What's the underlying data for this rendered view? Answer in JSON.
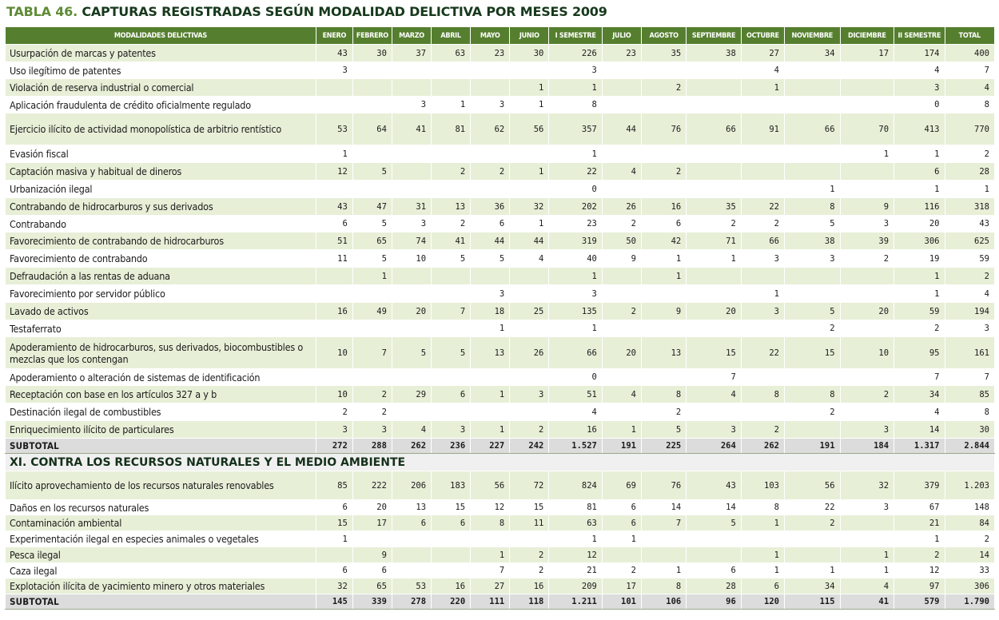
{
  "title": {
    "number": "TABLA 46.",
    "text": "CAPTURAS REGISTRADAS SEGÚN MODALIDAD DELICTIVA POR MESES 2009"
  },
  "columns": [
    "MODALIDADES DELICTIVAS",
    "ENERO",
    "FEBRERO",
    "MARZO",
    "ABRIL",
    "MAYO",
    "JUNIO",
    "I SEMESTRE",
    "JULIO",
    "AGOSTO",
    "SEPTIEMBRE",
    "OCTUBRE",
    "NOVIEMBRE",
    "DICIEMBRE",
    "II SEMESTRE",
    "TOTAL"
  ],
  "rows": [
    {
      "label": "Usurpación de marcas y patentes",
      "values": [
        "43",
        "30",
        "37",
        "63",
        "23",
        "30",
        "226",
        "23",
        "35",
        "38",
        "27",
        "34",
        "17",
        "174",
        "400"
      ]
    },
    {
      "label": "Uso ilegítimo de patentes",
      "values": [
        "3",
        "",
        "",
        "",
        "",
        "",
        "3",
        "",
        "",
        "",
        "4",
        "",
        "",
        "4",
        "7"
      ]
    },
    {
      "label": "Violación de reserva industrial o comercial",
      "values": [
        "",
        "",
        "",
        "",
        "",
        "1",
        "1",
        "",
        "2",
        "",
        "1",
        "",
        "",
        "3",
        "4"
      ]
    },
    {
      "label": "Aplicación fraudulenta de crédito oficialmente regulado",
      "values": [
        "",
        "",
        "3",
        "1",
        "3",
        "1",
        "8",
        "",
        "",
        "",
        "",
        "",
        "",
        "0",
        "8"
      ]
    },
    {
      "label": "Ejercicio ilícito de actividad monopolística de arbitrio rentístico",
      "values": [
        "53",
        "64",
        "41",
        "81",
        "62",
        "56",
        "357",
        "44",
        "76",
        "66",
        "91",
        "66",
        "70",
        "413",
        "770"
      ]
    },
    {
      "label": "Evasión fiscal",
      "values": [
        "1",
        "",
        "",
        "",
        "",
        "",
        "1",
        "",
        "",
        "",
        "",
        "",
        "1",
        "1",
        "2"
      ]
    },
    {
      "label": "Captación masiva y habitual de dineros",
      "values": [
        "12",
        "5",
        "",
        "2",
        "2",
        "1",
        "22",
        "4",
        "2",
        "",
        "",
        "",
        "",
        "6",
        "28"
      ]
    },
    {
      "label": "Urbanización ilegal",
      "values": [
        "",
        "",
        "",
        "",
        "",
        "",
        "0",
        "",
        "",
        "",
        "",
        "1",
        "",
        "1",
        "1"
      ]
    },
    {
      "label": "Contrabando de hidrocarburos y sus derivados",
      "values": [
        "43",
        "47",
        "31",
        "13",
        "36",
        "32",
        "202",
        "26",
        "16",
        "35",
        "22",
        "8",
        "9",
        "116",
        "318"
      ]
    },
    {
      "label": "Contrabando",
      "values": [
        "6",
        "5",
        "3",
        "2",
        "6",
        "1",
        "23",
        "2",
        "6",
        "2",
        "2",
        "5",
        "3",
        "20",
        "43"
      ]
    },
    {
      "label": "Favorecimiento de contrabando de hidrocarburos",
      "values": [
        "51",
        "65",
        "74",
        "41",
        "44",
        "44",
        "319",
        "50",
        "42",
        "71",
        "66",
        "38",
        "39",
        "306",
        "625"
      ]
    },
    {
      "label": "Favorecimiento de contrabando",
      "values": [
        "11",
        "5",
        "10",
        "5",
        "5",
        "4",
        "40",
        "9",
        "1",
        "1",
        "3",
        "3",
        "2",
        "19",
        "59"
      ]
    },
    {
      "label": "Defraudación a las rentas de aduana",
      "values": [
        "",
        "1",
        "",
        "",
        "",
        "",
        "1",
        "",
        "1",
        "",
        "",
        "",
        "",
        "1",
        "2"
      ]
    },
    {
      "label": "Favorecimiento por servidor público",
      "values": [
        "",
        "",
        "",
        "",
        "3",
        "",
        "3",
        "",
        "",
        "",
        "1",
        "",
        "",
        "1",
        "4"
      ]
    },
    {
      "label": "Lavado de activos",
      "values": [
        "16",
        "49",
        "20",
        "7",
        "18",
        "25",
        "135",
        "2",
        "9",
        "20",
        "3",
        "5",
        "20",
        "59",
        "194"
      ]
    },
    {
      "label": "Testaferrato",
      "values": [
        "",
        "",
        "",
        "",
        "1",
        "",
        "1",
        "",
        "",
        "",
        "",
        "2",
        "",
        "2",
        "3"
      ]
    },
    {
      "label": "Apoderamiento de hidrocarburos, sus derivados, biocombustibles o mezclas que los contengan",
      "values": [
        "10",
        "7",
        "5",
        "5",
        "13",
        "26",
        "66",
        "20",
        "13",
        "15",
        "22",
        "15",
        "10",
        "95",
        "161"
      ]
    },
    {
      "label": "Apoderamiento o alteración de sistemas de identificación",
      "values": [
        "",
        "",
        "",
        "",
        "",
        "",
        "0",
        "",
        "",
        "7",
        "",
        "",
        "",
        "7",
        "7"
      ]
    },
    {
      "label": "Receptación con base en los artículos 327 a y b",
      "values": [
        "10",
        "2",
        "29",
        "6",
        "1",
        "3",
        "51",
        "4",
        "8",
        "4",
        "8",
        "8",
        "2",
        "34",
        "85"
      ]
    },
    {
      "label": "Destinación ilegal de combustibles",
      "values": [
        "2",
        "2",
        "",
        "",
        "",
        "",
        "4",
        "",
        "2",
        "",
        "",
        "2",
        "",
        "4",
        "8"
      ]
    },
    {
      "label": "Enriquecimiento ilícito de particulares",
      "values": [
        "3",
        "3",
        "4",
        "3",
        "1",
        "2",
        "16",
        "1",
        "5",
        "3",
        "2",
        "",
        "3",
        "14",
        "30"
      ]
    }
  ],
  "subtotal1": {
    "label": "SUBTOTAL",
    "values": [
      "272",
      "288",
      "262",
      "236",
      "227",
      "242",
      "1.527",
      "191",
      "225",
      "264",
      "262",
      "191",
      "184",
      "1.317",
      "2.844"
    ]
  },
  "section2_title": "XI. CONTRA LOS RECURSOS NATURALES Y EL MEDIO AMBIENTE",
  "rows2": [
    {
      "label": "Ilícito aprovechamiento de los recursos naturales renovables",
      "values": [
        "85",
        "222",
        "206",
        "183",
        "56",
        "72",
        "824",
        "69",
        "76",
        "43",
        "103",
        "56",
        "32",
        "379",
        "1.203"
      ]
    },
    {
      "label": "Daños en los recursos naturales",
      "values": [
        "6",
        "20",
        "13",
        "15",
        "12",
        "15",
        "81",
        "6",
        "14",
        "14",
        "8",
        "22",
        "3",
        "67",
        "148"
      ]
    },
    {
      "label": "Contaminación ambiental",
      "values": [
        "15",
        "17",
        "6",
        "6",
        "8",
        "11",
        "63",
        "6",
        "7",
        "5",
        "1",
        "2",
        "",
        "21",
        "84"
      ]
    },
    {
      "label": "Experimentación ilegal en  especies animales o vegetales",
      "values": [
        "1",
        "",
        "",
        "",
        "",
        "",
        "1",
        "1",
        "",
        "",
        "",
        "",
        "",
        "1",
        "2"
      ]
    },
    {
      "label": "Pesca ilegal",
      "values": [
        "",
        "9",
        "",
        "",
        "1",
        "2",
        "12",
        "",
        "",
        "",
        "1",
        "",
        "1",
        "2",
        "14"
      ]
    },
    {
      "label": "Caza ilegal",
      "values": [
        "6",
        "6",
        "",
        "",
        "7",
        "2",
        "21",
        "2",
        "1",
        "6",
        "1",
        "1",
        "1",
        "12",
        "33"
      ]
    },
    {
      "label": "Explotación ilícita de yacimiento minero y otros materiales",
      "values": [
        "32",
        "65",
        "53",
        "16",
        "27",
        "16",
        "209",
        "17",
        "8",
        "28",
        "6",
        "34",
        "4",
        "97",
        "306"
      ]
    }
  ],
  "subtotal2": {
    "label": "SUBTOTAL",
    "values": [
      "145",
      "339",
      "278",
      "220",
      "111",
      "118",
      "1.211",
      "101",
      "106",
      "96",
      "120",
      "115",
      "41",
      "579",
      "1.790"
    ]
  }
}
